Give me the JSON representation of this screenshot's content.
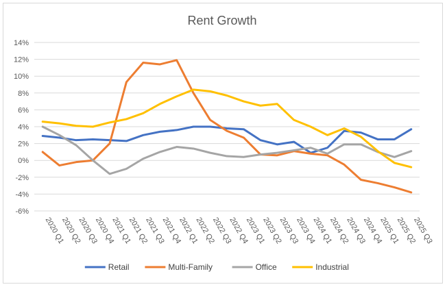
{
  "chart_data": {
    "type": "line",
    "title": "Rent Growth",
    "xlabel": "",
    "ylabel": "",
    "ylim": [
      -6,
      14
    ],
    "ytick_step": 2,
    "ytick_suffix": "%",
    "grid": true,
    "legend_position": "bottom",
    "categories": [
      "2020 Q1",
      "2020 Q2",
      "2020 Q3",
      "2020 Q4",
      "2021 Q1",
      "2021 Q2",
      "2021 Q3",
      "2021 Q4",
      "2022 Q1",
      "2022 Q2",
      "2022 Q3",
      "2022 Q4",
      "2023 Q1",
      "2023 Q2",
      "2023 Q3",
      "2023 Q4",
      "2024 Q1",
      "2024 Q2",
      "2024 Q3",
      "2024 Q4",
      "2025 Q1",
      "2025 Q2",
      "2025 Q3"
    ],
    "series": [
      {
        "name": "Retail",
        "color": "#4472C4",
        "values": [
          2.9,
          2.7,
          2.4,
          2.5,
          2.4,
          2.3,
          3.0,
          3.4,
          3.6,
          4.0,
          4.0,
          3.8,
          3.7,
          2.4,
          1.9,
          2.2,
          0.9,
          1.5,
          3.5,
          3.3,
          2.5,
          2.5,
          3.7
        ]
      },
      {
        "name": "Multi-Family",
        "color": "#ED7D31",
        "values": [
          1.0,
          -0.6,
          -0.2,
          0.0,
          2.0,
          9.3,
          11.6,
          11.4,
          11.9,
          8.0,
          4.8,
          3.5,
          2.7,
          0.7,
          0.6,
          1.1,
          0.8,
          0.6,
          -0.5,
          -2.3,
          -2.7,
          -3.2,
          -3.8
        ]
      },
      {
        "name": "Office",
        "color": "#A5A5A5",
        "values": [
          4.0,
          3.0,
          1.8,
          0.0,
          -1.6,
          -1.0,
          0.2,
          1.0,
          1.6,
          1.4,
          0.9,
          0.5,
          0.4,
          0.7,
          0.9,
          1.2,
          1.5,
          0.8,
          1.9,
          1.9,
          1.0,
          0.4,
          1.1
        ]
      },
      {
        "name": "Industrial",
        "color": "#FFC000",
        "values": [
          4.6,
          4.4,
          4.1,
          4.0,
          4.5,
          4.9,
          5.6,
          6.7,
          7.6,
          8.4,
          8.2,
          7.7,
          7.0,
          6.5,
          6.7,
          4.8,
          4.0,
          3.0,
          3.8,
          2.8,
          1.1,
          -0.3,
          -0.8
        ]
      }
    ]
  }
}
